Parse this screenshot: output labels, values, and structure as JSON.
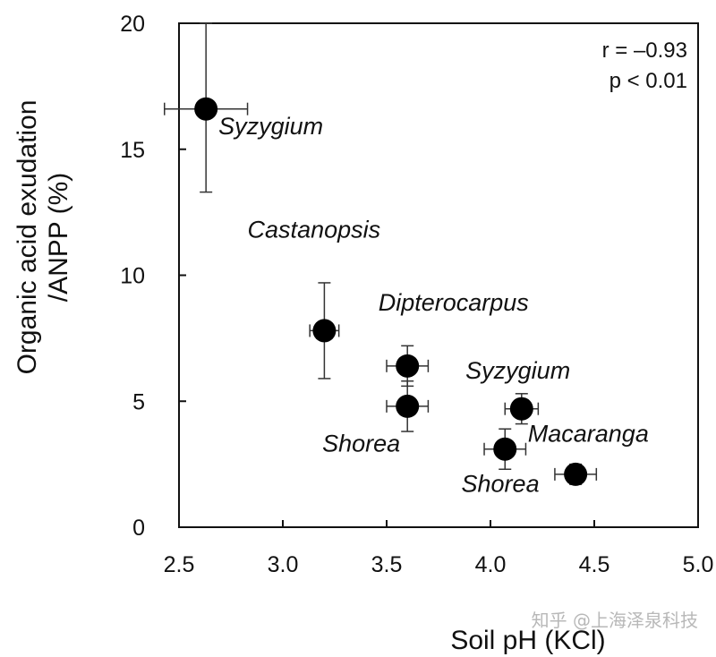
{
  "chart_data": {
    "type": "scatter",
    "xlabel": "Soil pH (KCl)",
    "ylabel_lines": [
      "Organic acid exudation",
      "/ANPP (%)"
    ],
    "xlim": [
      2.5,
      5.0
    ],
    "ylim": [
      0,
      20
    ],
    "xticks": [
      2.5,
      3.0,
      3.5,
      4.0,
      4.5,
      5.0
    ],
    "xtick_labels": [
      "2.5",
      "3.0",
      "3.5",
      "4.0",
      "4.5",
      "5.0"
    ],
    "yticks": [
      0,
      5,
      10,
      15,
      20
    ],
    "ytick_labels": [
      "0",
      "5",
      "10",
      "15",
      "20"
    ],
    "grid": false,
    "points": [
      {
        "x": 2.63,
        "y": 16.6,
        "xerr": 0.2,
        "yerr_low": 3.3,
        "yerr_high": 3.4
      },
      {
        "x": 3.2,
        "y": 7.8,
        "xerr": 0.07,
        "yerr_low": 1.9,
        "yerr_high": 1.9
      },
      {
        "x": 3.6,
        "y": 6.4,
        "xerr": 0.1,
        "yerr_low": 0.8,
        "yerr_high": 0.8
      },
      {
        "x": 3.6,
        "y": 4.8,
        "xerr": 0.1,
        "yerr_low": 1.0,
        "yerr_high": 1.0
      },
      {
        "x": 4.15,
        "y": 4.7,
        "xerr": 0.08,
        "yerr_low": 0.6,
        "yerr_high": 0.6
      },
      {
        "x": 4.07,
        "y": 3.1,
        "xerr": 0.1,
        "yerr_low": 0.8,
        "yerr_high": 0.8
      },
      {
        "x": 4.41,
        "y": 2.1,
        "xerr": 0.1,
        "yerr_low": 0.4,
        "yerr_high": 0.4
      }
    ],
    "annotations": [
      {
        "text": "Syzygium",
        "x": 2.69,
        "y": 15.6
      },
      {
        "text": "Castanopsis",
        "x": 2.83,
        "y": 11.5
      },
      {
        "text": "Dipterocarpus",
        "x": 3.46,
        "y": 8.6
      },
      {
        "text": "Syzygium",
        "x": 3.88,
        "y": 5.9
      },
      {
        "text": "Shorea",
        "x": 3.19,
        "y": 3.0
      },
      {
        "text": "Macaranga",
        "x": 4.18,
        "y": 3.4
      },
      {
        "text": "Shorea",
        "x": 3.86,
        "y": 1.4
      }
    ],
    "stats_lines": [
      "r = –0.93",
      "p < 0.01"
    ]
  },
  "watermark": "知乎 @上海泽泉科技"
}
